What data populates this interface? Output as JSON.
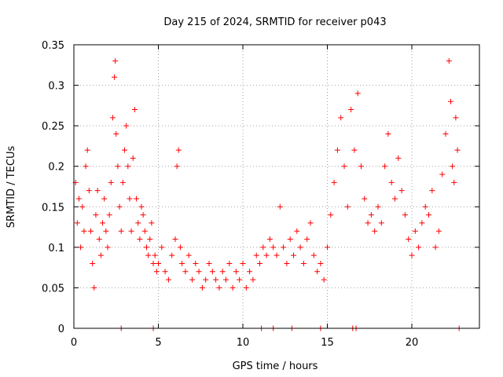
{
  "chart_data": {
    "type": "scatter",
    "title": "Day 215 of 2024, SRMTID for receiver p043",
    "xlabel": "GPS time / hours",
    "ylabel": "SRMTID / TECUs",
    "xlim": [
      0,
      24
    ],
    "ylim": [
      0,
      0.35
    ],
    "x_ticks": [
      0,
      5,
      10,
      15,
      20
    ],
    "x_tick_labels": [
      "0",
      "5",
      "10",
      "15",
      "20"
    ],
    "y_ticks": [
      0,
      0.05,
      0.1,
      0.15,
      0.2,
      0.25,
      0.3,
      0.35
    ],
    "y_tick_labels": [
      "0",
      "0.05",
      "0.1",
      "0.15",
      "0.2",
      "0.25",
      "0.3",
      "0.35"
    ],
    "grid": true,
    "marker": "+",
    "color": "#ff0000",
    "zero_markers_x": [
      2.8,
      4.7,
      11.1,
      11.8,
      12.9,
      14.6,
      16.5,
      16.7,
      22.8
    ],
    "series": [
      {
        "name": "SRMTID",
        "points": [
          [
            0.1,
            0.18
          ],
          [
            0.2,
            0.13
          ],
          [
            0.3,
            0.16
          ],
          [
            0.4,
            0.1
          ],
          [
            0.5,
            0.15
          ],
          [
            0.6,
            0.12
          ],
          [
            0.7,
            0.2
          ],
          [
            0.8,
            0.22
          ],
          [
            0.9,
            0.17
          ],
          [
            1.0,
            0.12
          ],
          [
            1.1,
            0.08
          ],
          [
            1.2,
            0.05
          ],
          [
            1.3,
            0.14
          ],
          [
            1.4,
            0.17
          ],
          [
            1.5,
            0.11
          ],
          [
            1.6,
            0.09
          ],
          [
            1.7,
            0.13
          ],
          [
            1.8,
            0.16
          ],
          [
            1.9,
            0.12
          ],
          [
            2.0,
            0.1
          ],
          [
            2.1,
            0.14
          ],
          [
            2.2,
            0.18
          ],
          [
            2.3,
            0.26
          ],
          [
            2.4,
            0.31
          ],
          [
            2.45,
            0.33
          ],
          [
            2.5,
            0.24
          ],
          [
            2.6,
            0.2
          ],
          [
            2.7,
            0.15
          ],
          [
            2.8,
            0.12
          ],
          [
            2.9,
            0.18
          ],
          [
            3.0,
            0.22
          ],
          [
            3.1,
            0.25
          ],
          [
            3.2,
            0.2
          ],
          [
            3.3,
            0.16
          ],
          [
            3.4,
            0.12
          ],
          [
            3.5,
            0.21
          ],
          [
            3.6,
            0.27
          ],
          [
            3.7,
            0.16
          ],
          [
            3.8,
            0.13
          ],
          [
            3.9,
            0.11
          ],
          [
            4.0,
            0.15
          ],
          [
            4.1,
            0.14
          ],
          [
            4.2,
            0.12
          ],
          [
            4.3,
            0.1
          ],
          [
            4.4,
            0.09
          ],
          [
            4.5,
            0.11
          ],
          [
            4.6,
            0.13
          ],
          [
            4.7,
            0.08
          ],
          [
            4.8,
            0.09
          ],
          [
            4.9,
            0.07
          ],
          [
            5.0,
            0.08
          ],
          [
            5.2,
            0.1
          ],
          [
            5.4,
            0.07
          ],
          [
            5.6,
            0.06
          ],
          [
            5.8,
            0.09
          ],
          [
            6.0,
            0.11
          ],
          [
            6.1,
            0.2
          ],
          [
            6.2,
            0.22
          ],
          [
            6.3,
            0.1
          ],
          [
            6.4,
            0.08
          ],
          [
            6.6,
            0.07
          ],
          [
            6.8,
            0.09
          ],
          [
            7.0,
            0.06
          ],
          [
            7.2,
            0.08
          ],
          [
            7.4,
            0.07
          ],
          [
            7.6,
            0.05
          ],
          [
            7.8,
            0.06
          ],
          [
            8.0,
            0.08
          ],
          [
            8.2,
            0.07
          ],
          [
            8.4,
            0.06
          ],
          [
            8.6,
            0.05
          ],
          [
            8.8,
            0.07
          ],
          [
            9.0,
            0.06
          ],
          [
            9.2,
            0.08
          ],
          [
            9.4,
            0.05
          ],
          [
            9.6,
            0.07
          ],
          [
            9.8,
            0.06
          ],
          [
            10.0,
            0.08
          ],
          [
            10.2,
            0.05
          ],
          [
            10.4,
            0.07
          ],
          [
            10.6,
            0.06
          ],
          [
            10.8,
            0.09
          ],
          [
            11.0,
            0.08
          ],
          [
            11.2,
            0.1
          ],
          [
            11.4,
            0.09
          ],
          [
            11.6,
            0.11
          ],
          [
            11.8,
            0.1
          ],
          [
            12.0,
            0.09
          ],
          [
            12.2,
            0.15
          ],
          [
            12.4,
            0.1
          ],
          [
            12.6,
            0.08
          ],
          [
            12.8,
            0.11
          ],
          [
            13.0,
            0.09
          ],
          [
            13.2,
            0.12
          ],
          [
            13.4,
            0.1
          ],
          [
            13.6,
            0.08
          ],
          [
            13.8,
            0.11
          ],
          [
            14.0,
            0.13
          ],
          [
            14.2,
            0.09
          ],
          [
            14.4,
            0.07
          ],
          [
            14.6,
            0.08
          ],
          [
            14.8,
            0.06
          ],
          [
            15.0,
            0.1
          ],
          [
            15.2,
            0.14
          ],
          [
            15.4,
            0.18
          ],
          [
            15.6,
            0.22
          ],
          [
            15.8,
            0.26
          ],
          [
            16.0,
            0.2
          ],
          [
            16.2,
            0.15
          ],
          [
            16.4,
            0.27
          ],
          [
            16.6,
            0.22
          ],
          [
            16.8,
            0.29
          ],
          [
            17.0,
            0.2
          ],
          [
            17.2,
            0.16
          ],
          [
            17.4,
            0.13
          ],
          [
            17.6,
            0.14
          ],
          [
            17.8,
            0.12
          ],
          [
            18.0,
            0.15
          ],
          [
            18.2,
            0.13
          ],
          [
            18.4,
            0.2
          ],
          [
            18.6,
            0.24
          ],
          [
            18.8,
            0.18
          ],
          [
            19.0,
            0.16
          ],
          [
            19.2,
            0.21
          ],
          [
            19.4,
            0.17
          ],
          [
            19.6,
            0.14
          ],
          [
            19.8,
            0.11
          ],
          [
            20.0,
            0.09
          ],
          [
            20.2,
            0.12
          ],
          [
            20.4,
            0.1
          ],
          [
            20.6,
            0.13
          ],
          [
            20.8,
            0.15
          ],
          [
            21.0,
            0.14
          ],
          [
            21.2,
            0.17
          ],
          [
            21.4,
            0.1
          ],
          [
            21.6,
            0.12
          ],
          [
            21.8,
            0.19
          ],
          [
            22.0,
            0.24
          ],
          [
            22.2,
            0.33
          ],
          [
            22.3,
            0.28
          ],
          [
            22.4,
            0.2
          ],
          [
            22.5,
            0.18
          ],
          [
            22.6,
            0.26
          ],
          [
            22.7,
            0.22
          ]
        ]
      }
    ]
  }
}
